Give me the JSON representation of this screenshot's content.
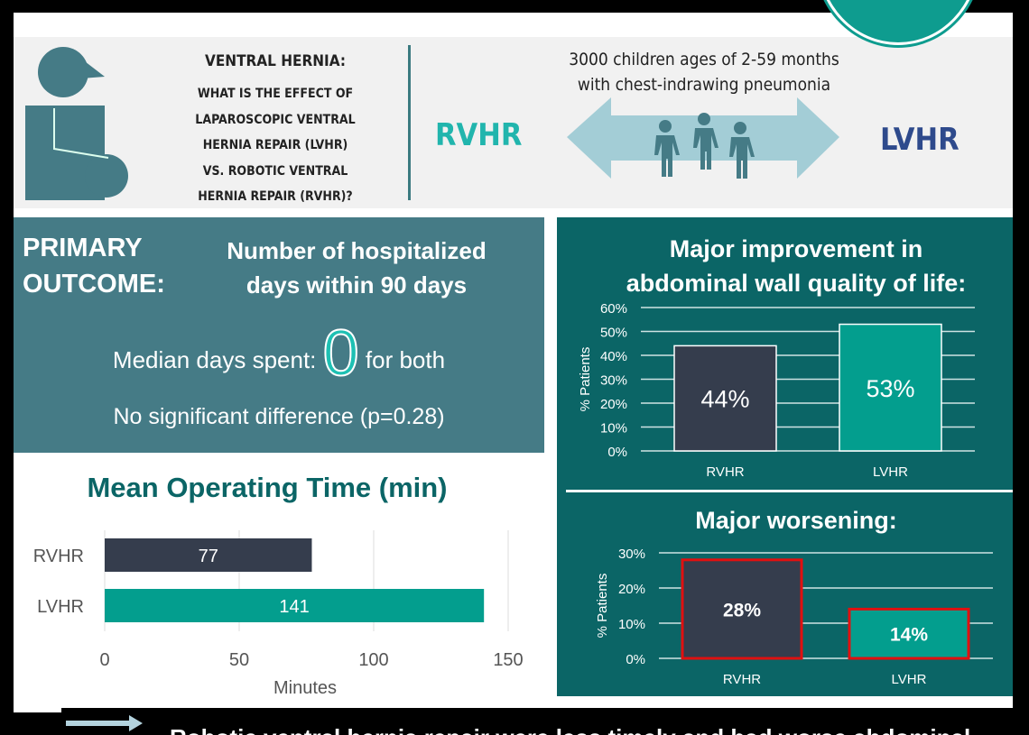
{
  "header": {
    "question_title": "VENTRAL HERNIA:",
    "question_lines": [
      "WHAT IS THE EFFECT OF",
      "LAPAROSCOPIC VENTRAL",
      "HERNIA REPAIR (LVHR)",
      "VS. ROBOTIC VENTRAL",
      "HERNIA REPAIR (RVHR)?"
    ],
    "population_lines": [
      "3000 children ages of 2-59 months",
      "with chest-indrawing pneumonia"
    ],
    "left_arm": "RVHR",
    "right_arm": "LVHR",
    "colors": {
      "rvhr": "#21b5ad",
      "lvhr": "#2e4a8c"
    }
  },
  "primary": {
    "label_lines": [
      "PRIMARY",
      "OUTCOME:"
    ],
    "measure_lines": [
      "Number of hospitalized",
      "days within 90 days"
    ],
    "median_prefix": "Median days spent:",
    "median_value": "0",
    "median_suffix": "for both",
    "significance": "No significant difference (p=0.28)"
  },
  "footer": {
    "arrow_icon": "arrow-right-icon",
    "text": "Robotic ventral hernia repair were less timely and had worse abdominal"
  },
  "chart_data": [
    {
      "type": "bar",
      "orientation": "horizontal",
      "title": "Mean Operating Time (min)",
      "categories": [
        "RVHR",
        "LVHR"
      ],
      "values": [
        77,
        141
      ],
      "data_labels": [
        "77",
        "141"
      ],
      "xlabel": "Minutes",
      "xlim": [
        0,
        150
      ],
      "xticks": [
        "0",
        "50",
        "100",
        "150"
      ],
      "colors": [
        "#353d4d",
        "#039e8e"
      ],
      "grid": true
    },
    {
      "type": "bar",
      "title": "Major improvement in abdominal wall quality of life:",
      "categories": [
        "RVHR",
        "LVHR"
      ],
      "values": [
        44,
        53
      ],
      "data_labels": [
        "44%",
        "53%"
      ],
      "ylabel": "% Patients",
      "ylim": [
        0,
        60
      ],
      "yticks": [
        "0%",
        "10%",
        "20%",
        "30%",
        "40%",
        "50%",
        "60%"
      ],
      "colors": [
        "#353d4d",
        "#039e8e"
      ],
      "grid": true
    },
    {
      "type": "bar",
      "title": "Major worsening:",
      "categories": [
        "RVHR",
        "LVHR"
      ],
      "values": [
        28,
        14
      ],
      "data_labels": [
        "28%",
        "14%"
      ],
      "ylabel": "% Patients",
      "ylim": [
        0,
        30
      ],
      "yticks": [
        "0%",
        "10%",
        "20%",
        "30%"
      ],
      "colors": [
        "#353d4d",
        "#039e8e"
      ],
      "outline_color": "#e01010",
      "grid": true
    }
  ]
}
